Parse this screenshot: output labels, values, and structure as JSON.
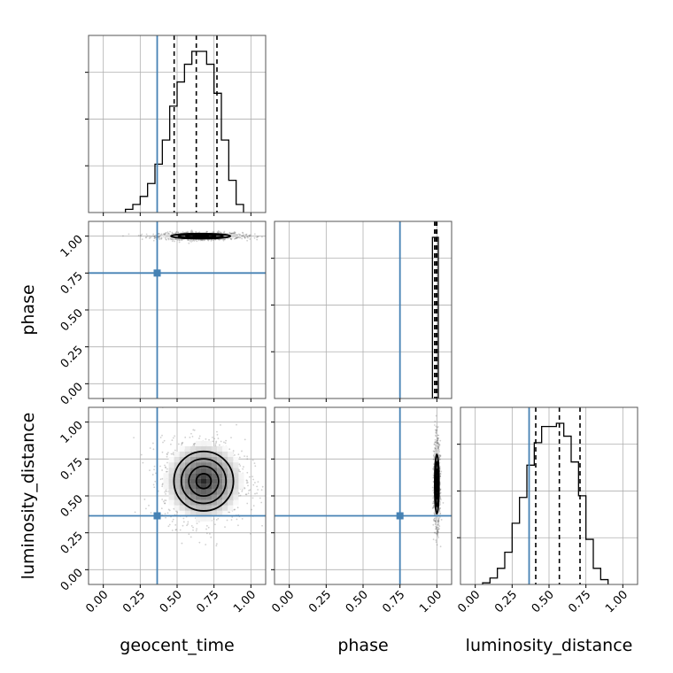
{
  "chart_data": {
    "type": "corner",
    "parameters": [
      "geocent_time",
      "phase",
      "luminosity_distance"
    ],
    "axis_range": [
      -0.1,
      1.1
    ],
    "ticks": [
      0.0,
      0.25,
      0.5,
      0.75,
      1.0
    ],
    "tick_labels": [
      "0.00",
      "0.25",
      "0.50",
      "0.75",
      "1.00"
    ],
    "grid": true,
    "truth_color": "#4682b4",
    "truths": {
      "geocent_time": 0.365,
      "phase": 0.75,
      "luminosity_distance": 0.365
    },
    "histograms": {
      "geocent_time": {
        "bins": [
          0.175,
          0.225,
          0.275,
          0.325,
          0.375,
          0.425,
          0.475,
          0.525,
          0.575,
          0.625,
          0.675,
          0.725,
          0.775,
          0.825,
          0.875,
          0.925
        ],
        "counts": [
          2,
          5,
          10,
          18,
          30,
          45,
          66,
          81,
          92,
          100,
          100,
          92,
          74,
          45,
          20,
          5
        ],
        "quantiles": [
          0.48,
          0.63,
          0.77
        ]
      },
      "phase": {
        "bins": [
          0.98,
          1.0
        ],
        "counts": [
          100,
          100
        ],
        "quantiles": [
          0.985,
          0.995,
          1.0
        ]
      },
      "luminosity_distance": {
        "bins": [
          0.075,
          0.125,
          0.175,
          0.225,
          0.275,
          0.325,
          0.375,
          0.425,
          0.475,
          0.525,
          0.575,
          0.625,
          0.675,
          0.725,
          0.775,
          0.825,
          0.875
        ],
        "counts": [
          1,
          4,
          10,
          20,
          38,
          54,
          74,
          88,
          98,
          98,
          100,
          92,
          76,
          55,
          28,
          10,
          3
        ],
        "quantiles": [
          0.41,
          0.57,
          0.71
        ]
      }
    },
    "joint_2d": [
      {
        "x": "geocent_time",
        "y": "phase",
        "center": [
          0.66,
          1.0
        ],
        "sigma": [
          0.14,
          0.012
        ]
      },
      {
        "x": "geocent_time",
        "y": "luminosity_distance",
        "center": [
          0.68,
          0.6
        ],
        "sigma": [
          0.14,
          0.14
        ]
      },
      {
        "x": "phase",
        "y": "luminosity_distance",
        "center": [
          1.0,
          0.58
        ],
        "sigma": [
          0.01,
          0.14
        ]
      }
    ],
    "contour_levels_sigma": [
      0.5,
      1.0,
      1.5,
      2.0
    ]
  }
}
